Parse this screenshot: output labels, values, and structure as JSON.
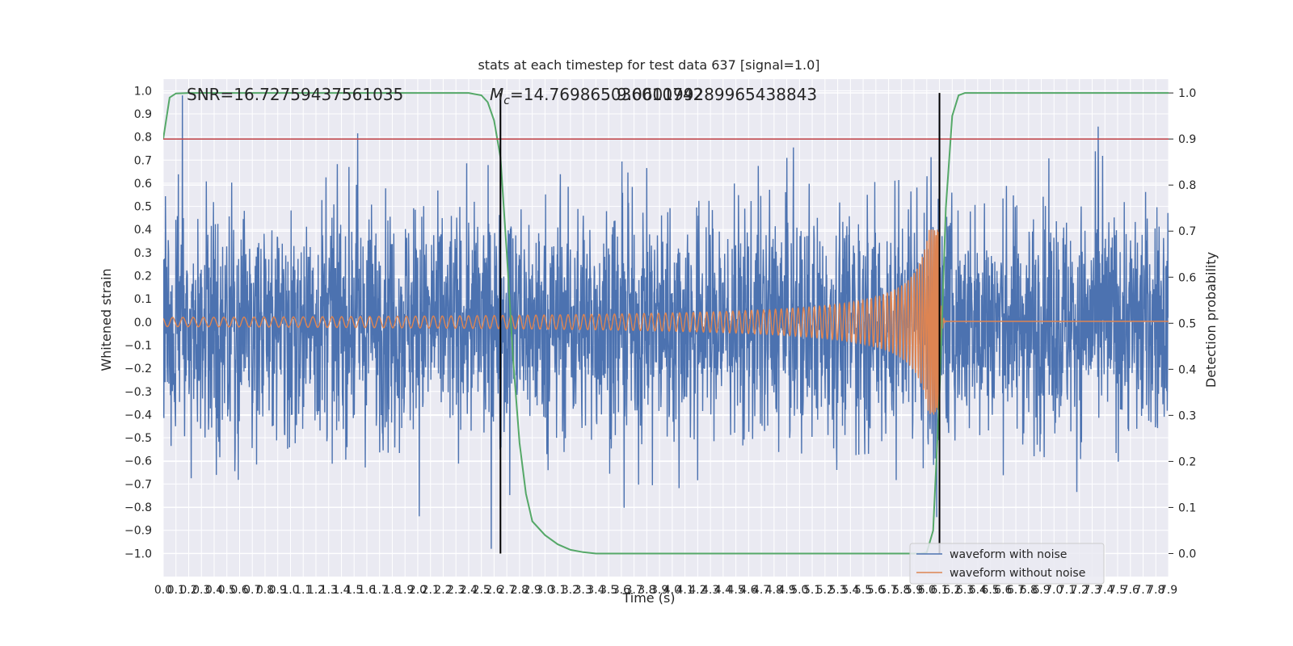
{
  "chart_data": {
    "type": "line",
    "title": "stats at each timestep for test data 637 [signal=1.0]",
    "xlabel": "Time (s)",
    "ylabel_left": "Whitened strain",
    "ylabel_right": "Detection probability",
    "xlim": [
      0.0,
      7.9
    ],
    "ylim_left": [
      -1.1,
      1.05
    ],
    "ylim_right": [
      -0.05,
      1.03
    ],
    "xticks": [
      "0.0",
      "0.1",
      "0.2",
      "0.3",
      "0.4",
      "0.5",
      "0.6",
      "0.7",
      "0.8",
      "0.9",
      "1.0",
      "1.1",
      "1.2",
      "1.3",
      "1.4",
      "1.5",
      "1.6",
      "1.7",
      "1.8",
      "1.9",
      "2.0",
      "2.1",
      "2.2",
      "2.3",
      "2.4",
      "2.5",
      "2.6",
      "2.7",
      "2.8",
      "2.9",
      "3.0",
      "3.1",
      "3.2",
      "3.3",
      "3.4",
      "3.5",
      "3.6",
      "3.7",
      "3.8",
      "3.9",
      "4.0",
      "4.1",
      "4.2",
      "4.3",
      "4.4",
      "4.5",
      "4.6",
      "4.7",
      "4.8",
      "4.9",
      "5.0",
      "5.1",
      "5.2",
      "5.3",
      "5.4",
      "5.5",
      "5.6",
      "5.7",
      "5.8",
      "5.9",
      "6.0",
      "6.1",
      "6.2",
      "6.3",
      "6.4",
      "6.5",
      "6.6",
      "6.7",
      "6.8",
      "6.9",
      "7.0",
      "7.1",
      "7.2",
      "7.3",
      "7.4",
      "7.5",
      "7.6",
      "7.7",
      "7.8",
      "7.9"
    ],
    "yticks_left": [
      "1.0",
      "0.9",
      "0.8",
      "0.7",
      "0.6",
      "0.5",
      "0.4",
      "0.3",
      "0.2",
      "0.1",
      "0.0",
      "−0.1",
      "−0.2",
      "−0.3",
      "−0.4",
      "−0.5",
      "−0.6",
      "−0.7",
      "−0.8",
      "−0.9",
      "−1.0"
    ],
    "yticks_right": [
      "1.0",
      "0.9",
      "0.8",
      "0.7",
      "0.6",
      "0.5",
      "0.4",
      "0.3",
      "0.2",
      "0.1",
      "0.0"
    ],
    "annotations": {
      "snr": "SNR=16.72759437561035",
      "mc_symbol": "M",
      "mc_sub": "c",
      "mc_value": "=14.769865036010742",
      "overlap_text": "9.060199289965438843"
    },
    "threshold": {
      "value": 0.9,
      "axis": "right",
      "color": "#c44e52"
    },
    "vertical_markers": [
      2.65,
      6.1
    ],
    "series": [
      {
        "name": "waveform with noise",
        "color": "#4c72b0",
        "axis": "left",
        "kind": "noise",
        "typical_amplitude": 0.4,
        "peak_amplitude": 0.98
      },
      {
        "name": "waveform without noise",
        "color": "#dd8452",
        "axis": "left",
        "kind": "chirp",
        "merger_time": 6.1,
        "peak_amplitude": 0.4
      },
      {
        "color": "#55a868",
        "axis": "right",
        "kind": "probability",
        "points": [
          [
            0.0,
            0.9
          ],
          [
            0.05,
            0.99
          ],
          [
            0.1,
            0.999
          ],
          [
            0.2,
            1.0
          ],
          [
            2.4,
            1.0
          ],
          [
            2.5,
            0.995
          ],
          [
            2.55,
            0.98
          ],
          [
            2.6,
            0.94
          ],
          [
            2.65,
            0.86
          ],
          [
            2.7,
            0.65
          ],
          [
            2.75,
            0.42
          ],
          [
            2.8,
            0.24
          ],
          [
            2.85,
            0.13
          ],
          [
            2.9,
            0.07
          ],
          [
            3.0,
            0.04
          ],
          [
            3.1,
            0.02
          ],
          [
            3.2,
            0.008
          ],
          [
            3.3,
            0.003
          ],
          [
            3.4,
            0.0
          ],
          [
            5.95,
            0.0
          ],
          [
            6.0,
            0.002
          ],
          [
            6.05,
            0.05
          ],
          [
            6.1,
            0.35
          ],
          [
            6.15,
            0.75
          ],
          [
            6.2,
            0.95
          ],
          [
            6.25,
            0.995
          ],
          [
            6.3,
            1.0
          ],
          [
            7.9,
            1.0
          ]
        ]
      }
    ],
    "legend": {
      "placement": "bottom-right",
      "entries": [
        "waveform with noise",
        "waveform without noise"
      ]
    },
    "grid": true,
    "colors": {
      "plot_bg": "#eaeaf2",
      "grid": "#ffffff",
      "marker": "#000000"
    }
  }
}
